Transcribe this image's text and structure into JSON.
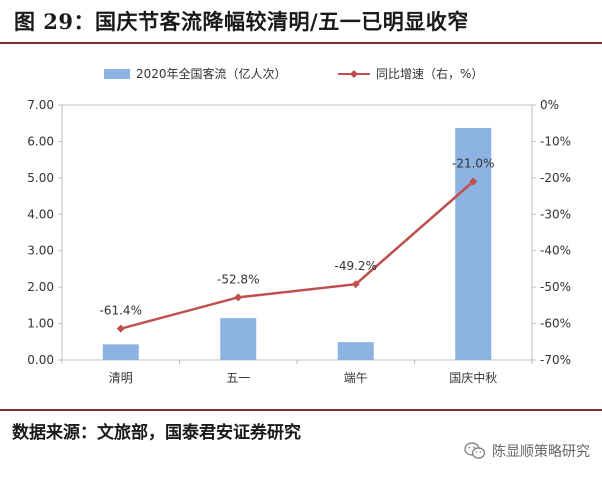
{
  "figure": {
    "title": "图 29：国庆节客流降幅较清明/五一已明显收窄",
    "source": "数据来源：文旅部，国泰君安证券研究",
    "watermark": "陈显顺策略研究",
    "watermark_icon": "wechat-icon"
  },
  "chart_data": {
    "type": "bar+line",
    "categories": [
      "清明",
      "五一",
      "端午",
      "国庆中秋"
    ],
    "series": [
      {
        "name": "2020年全国客流（亿人次）",
        "type": "bar",
        "axis": "left",
        "values": [
          0.43,
          1.15,
          0.49,
          6.37
        ],
        "color": "#8db3e2"
      },
      {
        "name": "同比增速（右，%）",
        "type": "line",
        "axis": "right",
        "values": [
          -61.4,
          -52.8,
          -49.2,
          -21.0
        ],
        "labels": [
          "-61.4%",
          "-52.8%",
          "-49.2%",
          "-21.0%"
        ],
        "color": "#c0504d"
      }
    ],
    "y_left": {
      "min": 0,
      "max": 7,
      "ticks": [
        "0.00",
        "1.00",
        "2.00",
        "3.00",
        "4.00",
        "5.00",
        "6.00",
        "7.00"
      ]
    },
    "y_right": {
      "min": -70,
      "max": 0,
      "ticks": [
        "-70%",
        "-60%",
        "-50%",
        "-40%",
        "-30%",
        "-20%",
        "-10%",
        "0%"
      ]
    },
    "legend": "top",
    "grid": false
  }
}
